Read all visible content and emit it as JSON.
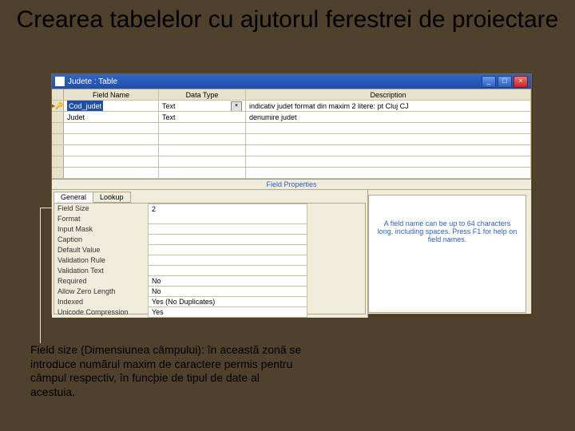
{
  "slide": {
    "title": "Crearea tabelelor cu ajutorul ferestrei de proiectare",
    "caption": "Field size (Dimensiunea câmpului): în aceastã zonã se introduce numãrul maxim de caractere permis pentru câmpul respectiv, în funcþie de tipul de date al acestuia."
  },
  "window": {
    "title": "Judete : Table",
    "fieldGrid": {
      "headers": {
        "name": "Field Name",
        "type": "Data Type",
        "desc": "Description"
      },
      "rows": [
        {
          "pk": true,
          "name": "Cod_judet",
          "selected": true,
          "type": "Text",
          "typeDropdown": true,
          "desc": "indicativ judet format din maxim 2 litere: pt Cluj CJ"
        },
        {
          "pk": false,
          "name": "Judet",
          "selected": false,
          "type": "Text",
          "typeDropdown": false,
          "desc": "denumire judet"
        }
      ],
      "blankRowCount": 5
    },
    "fieldPropertiesTitle": "Field Properties",
    "tabs": {
      "general": "General",
      "lookup": "Lookup",
      "active": "general"
    },
    "properties": [
      {
        "label": "Field Size",
        "value": "2"
      },
      {
        "label": "Format",
        "value": ""
      },
      {
        "label": "Input Mask",
        "value": ""
      },
      {
        "label": "Caption",
        "value": ""
      },
      {
        "label": "Default Value",
        "value": ""
      },
      {
        "label": "Validation Rule",
        "value": ""
      },
      {
        "label": "Validation Text",
        "value": ""
      },
      {
        "label": "Required",
        "value": "No"
      },
      {
        "label": "Allow Zero Length",
        "value": "No"
      },
      {
        "label": "Indexed",
        "value": "Yes (No Duplicates)"
      },
      {
        "label": "Unicode Compression",
        "value": "Yes"
      }
    ],
    "hint": "A field name can be up to 64 characters long, including spaces. Press F1 for help on field names.",
    "buttons": {
      "min": "_",
      "max": "□",
      "close": "×"
    }
  },
  "colors": {
    "background": "#4f412c",
    "windowBg": "#f0ecdc",
    "titlebar": "#2a5fc0",
    "callout": "#e8e2cc"
  }
}
